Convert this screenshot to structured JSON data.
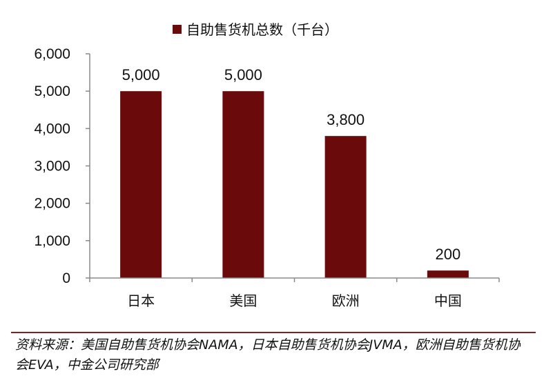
{
  "chart_data": {
    "type": "bar",
    "legend": {
      "label": "自助售货机总数（千台）",
      "placement": "top-center"
    },
    "categories": [
      "日本",
      "美国",
      "欧洲",
      "中国"
    ],
    "series": [
      {
        "name": "自助售货机总数（千台）",
        "values": [
          5000,
          5000,
          3800,
          200
        ],
        "data_labels": [
          "5,000",
          "5,000",
          "3,800",
          "200"
        ],
        "color": "#6b0a0a"
      }
    ],
    "ylim": [
      0,
      6000
    ],
    "yticks": [
      0,
      1000,
      2000,
      3000,
      4000,
      5000,
      6000
    ],
    "ytick_labels": [
      "0",
      "1,000",
      "2,000",
      "3,000",
      "4,000",
      "5,000",
      "6,000"
    ],
    "grid": false
  },
  "footer": {
    "source": "资料来源：美国自助售货机协会NAMA，日本自助售货机协会JVMA，欧洲自助售货机协会EVA，中金公司研究部"
  },
  "colors": {
    "bar": "#6b0a0a",
    "source_rule": "#8a1c1c"
  }
}
